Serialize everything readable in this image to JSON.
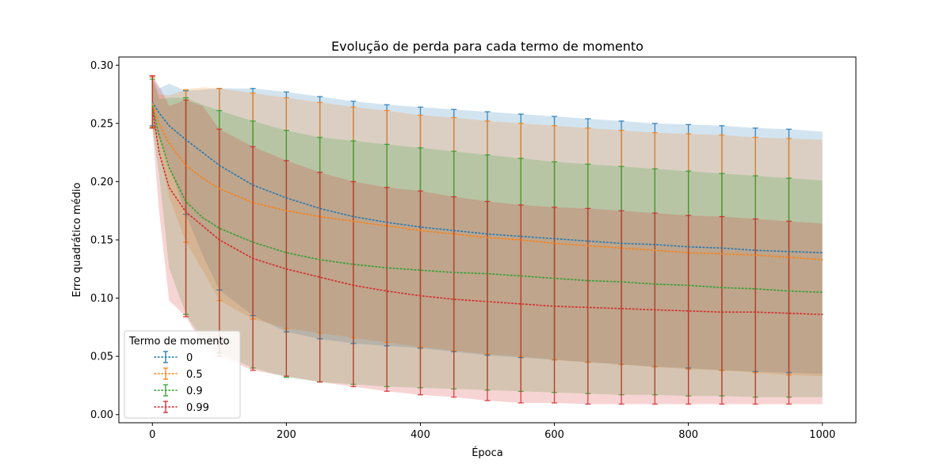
{
  "chart_data": {
    "type": "line",
    "title": "Evolução de perda para cada termo de momento",
    "xlabel": "Época",
    "ylabel": "Erro quadrático médio",
    "xlim": [
      -50,
      1050
    ],
    "ylim": [
      -0.007,
      0.307
    ],
    "xticks": [
      0,
      200,
      400,
      600,
      800,
      1000
    ],
    "yticks": [
      0.0,
      0.05,
      0.1,
      0.15,
      0.2,
      0.25,
      0.3
    ],
    "grid": false,
    "legend": {
      "title": "Termo de momento",
      "position": "lower-left"
    },
    "errorbar_epochs": [
      0,
      50,
      100,
      150,
      200,
      250,
      300,
      350,
      400,
      450,
      500,
      550,
      600,
      650,
      700,
      750,
      800,
      850,
      900,
      950
    ],
    "x": [
      0,
      10,
      25,
      50,
      75,
      100,
      150,
      200,
      250,
      300,
      350,
      400,
      450,
      500,
      550,
      600,
      650,
      700,
      750,
      800,
      850,
      900,
      950,
      1000
    ],
    "series": [
      {
        "name": "0",
        "color": "#1f77b4",
        "mean": [
          0.268,
          0.259,
          0.248,
          0.236,
          0.225,
          0.214,
          0.197,
          0.186,
          0.177,
          0.17,
          0.165,
          0.161,
          0.158,
          0.155,
          0.153,
          0.151,
          0.149,
          0.147,
          0.146,
          0.144,
          0.143,
          0.141,
          0.14,
          0.139
        ],
        "lower": [
          0.248,
          0.238,
          0.214,
          0.172,
          0.137,
          0.107,
          0.085,
          0.071,
          0.065,
          0.061,
          0.059,
          0.057,
          0.054,
          0.051,
          0.049,
          0.047,
          0.045,
          0.043,
          0.041,
          0.04,
          0.038,
          0.037,
          0.036,
          0.035
        ],
        "upper": [
          0.29,
          0.28,
          0.284,
          0.278,
          0.279,
          0.28,
          0.28,
          0.277,
          0.273,
          0.269,
          0.266,
          0.264,
          0.262,
          0.26,
          0.258,
          0.256,
          0.254,
          0.252,
          0.25,
          0.249,
          0.248,
          0.246,
          0.245,
          0.243
        ]
      },
      {
        "name": "0.5",
        "color": "#ff7f0e",
        "mean": [
          0.267,
          0.25,
          0.233,
          0.214,
          0.203,
          0.194,
          0.182,
          0.175,
          0.17,
          0.166,
          0.162,
          0.158,
          0.155,
          0.152,
          0.15,
          0.147,
          0.145,
          0.143,
          0.141,
          0.139,
          0.138,
          0.137,
          0.135,
          0.133
        ],
        "lower": [
          0.247,
          0.227,
          0.187,
          0.148,
          0.124,
          0.098,
          0.082,
          0.074,
          0.07,
          0.066,
          0.062,
          0.058,
          0.055,
          0.052,
          0.05,
          0.047,
          0.045,
          0.043,
          0.041,
          0.039,
          0.038,
          0.036,
          0.034,
          0.033
        ],
        "upper": [
          0.29,
          0.275,
          0.274,
          0.279,
          0.281,
          0.28,
          0.276,
          0.272,
          0.268,
          0.264,
          0.261,
          0.257,
          0.255,
          0.252,
          0.25,
          0.248,
          0.246,
          0.244,
          0.242,
          0.241,
          0.24,
          0.238,
          0.237,
          0.236
        ]
      },
      {
        "name": "0.9",
        "color": "#2ca02c",
        "mean": [
          0.265,
          0.24,
          0.212,
          0.183,
          0.169,
          0.16,
          0.148,
          0.139,
          0.133,
          0.129,
          0.126,
          0.124,
          0.122,
          0.121,
          0.119,
          0.117,
          0.115,
          0.114,
          0.112,
          0.111,
          0.109,
          0.108,
          0.106,
          0.105
        ],
        "lower": [
          0.246,
          0.207,
          0.126,
          0.086,
          0.064,
          0.053,
          0.04,
          0.032,
          0.028,
          0.026,
          0.024,
          0.023,
          0.022,
          0.021,
          0.02,
          0.019,
          0.018,
          0.017,
          0.017,
          0.016,
          0.016,
          0.015,
          0.015,
          0.015
        ],
        "upper": [
          0.288,
          0.271,
          0.272,
          0.272,
          0.266,
          0.261,
          0.252,
          0.244,
          0.238,
          0.235,
          0.232,
          0.229,
          0.226,
          0.223,
          0.22,
          0.217,
          0.215,
          0.213,
          0.211,
          0.209,
          0.207,
          0.205,
          0.203,
          0.201
        ]
      },
      {
        "name": "0.99",
        "color": "#d62728",
        "mean": [
          0.263,
          0.225,
          0.195,
          0.174,
          0.162,
          0.15,
          0.134,
          0.125,
          0.118,
          0.111,
          0.106,
          0.102,
          0.099,
          0.097,
          0.095,
          0.093,
          0.092,
          0.091,
          0.09,
          0.089,
          0.088,
          0.088,
          0.087,
          0.086
        ],
        "lower": [
          0.246,
          0.175,
          0.098,
          0.084,
          0.06,
          0.05,
          0.038,
          0.033,
          0.028,
          0.024,
          0.02,
          0.017,
          0.015,
          0.012,
          0.01,
          0.01,
          0.009,
          0.009,
          0.009,
          0.009,
          0.009,
          0.009,
          0.009,
          0.009
        ],
        "upper": [
          0.291,
          0.282,
          0.265,
          0.27,
          0.265,
          0.245,
          0.23,
          0.218,
          0.208,
          0.2,
          0.195,
          0.192,
          0.187,
          0.183,
          0.18,
          0.178,
          0.177,
          0.175,
          0.173,
          0.171,
          0.17,
          0.168,
          0.166,
          0.164
        ]
      }
    ]
  }
}
